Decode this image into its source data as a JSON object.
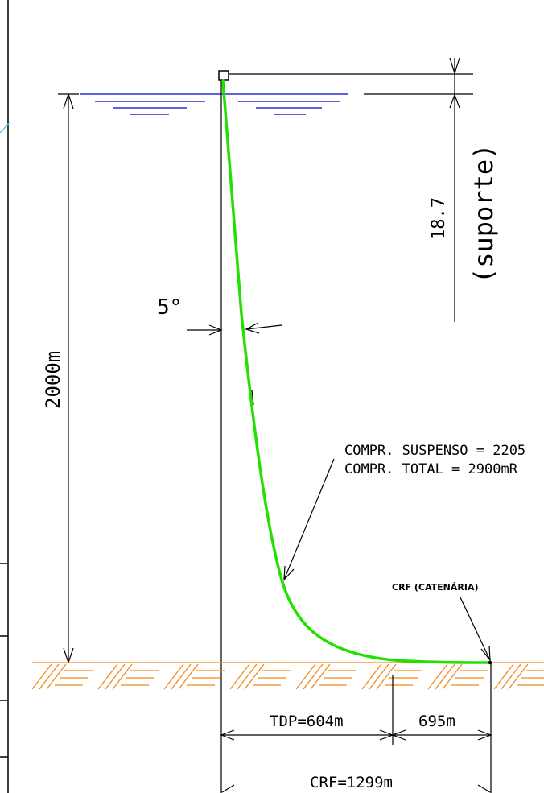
{
  "annotations": {
    "support_value": "18.7",
    "support_label": "(suporte)",
    "depth_label": "2000m",
    "angle_label": "5°",
    "suspended_length": "COMPR. SUSPENSO = 2205",
    "total_length": "COMPR. TOTAL = 2900mR",
    "crf_marker": "CRF (CATENÁRIA)",
    "tdp_distance": "TDP=604m",
    "remaining_distance": "695m",
    "crf_distance": "CRF=1299m"
  },
  "colors": {
    "riser": "#22e000",
    "water": "#0000cc",
    "seabed": "#f08a1a",
    "lines": "#000000",
    "accent_cyan": "#40c0e0"
  }
}
